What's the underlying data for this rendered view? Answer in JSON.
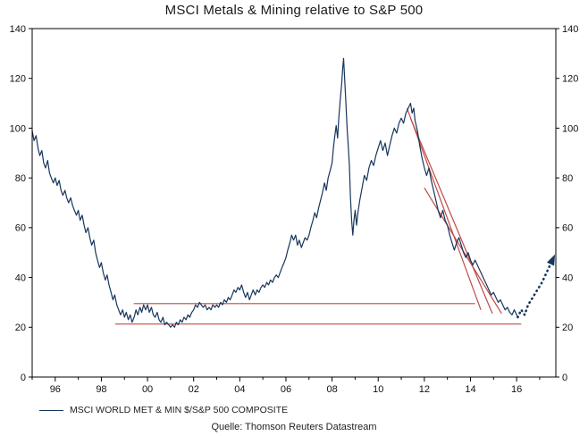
{
  "title": "MSCI Metals & Mining relative to S&P 500",
  "legend": {
    "label": "MSCI WORLD MET & MIN $/S&P 500 COMPOSITE"
  },
  "source": "Quelle: Thomson Reuters Datastream",
  "colors": {
    "series": "#17365d",
    "forecast": "#17365d",
    "annotation": "#bf4a47",
    "axis": "#000000",
    "background": "#ffffff"
  },
  "chart_data": {
    "type": "line",
    "title": "MSCI Metals & Mining relative to S&P 500",
    "xlabel": "",
    "ylabel": "",
    "grid": false,
    "legend_position": "bottom-left",
    "xlim": [
      1995,
      2017.7
    ],
    "ylim": [
      0,
      140
    ],
    "yticks": [
      0,
      20,
      40,
      60,
      80,
      100,
      120,
      140
    ],
    "xticks": [
      {
        "x": 1996,
        "label": "96"
      },
      {
        "x": 1998,
        "label": "98"
      },
      {
        "x": 2000,
        "label": "00"
      },
      {
        "x": 2002,
        "label": "02"
      },
      {
        "x": 2004,
        "label": "04"
      },
      {
        "x": 2006,
        "label": "06"
      },
      {
        "x": 2008,
        "label": "08"
      },
      {
        "x": 2010,
        "label": "10"
      },
      {
        "x": 2012,
        "label": "12"
      },
      {
        "x": 2014,
        "label": "14"
      },
      {
        "x": 2016,
        "label": "16"
      }
    ],
    "series": [
      {
        "name": "MSCI WORLD MET & MIN $/S&P 500 COMPOSITE",
        "points": [
          [
            1995.0,
            99
          ],
          [
            1995.08,
            95
          ],
          [
            1995.17,
            97
          ],
          [
            1995.25,
            92
          ],
          [
            1995.33,
            89
          ],
          [
            1995.42,
            91
          ],
          [
            1995.5,
            86
          ],
          [
            1995.58,
            84
          ],
          [
            1995.67,
            87
          ],
          [
            1995.75,
            82
          ],
          [
            1995.83,
            80
          ],
          [
            1995.92,
            78
          ],
          [
            1996.0,
            80
          ],
          [
            1996.08,
            77
          ],
          [
            1996.17,
            79
          ],
          [
            1996.25,
            75
          ],
          [
            1996.33,
            73
          ],
          [
            1996.42,
            75
          ],
          [
            1996.5,
            72
          ],
          [
            1996.58,
            70
          ],
          [
            1996.67,
            72
          ],
          [
            1996.75,
            69
          ],
          [
            1996.83,
            67
          ],
          [
            1996.92,
            65
          ],
          [
            1997.0,
            67
          ],
          [
            1997.08,
            63
          ],
          [
            1997.17,
            65
          ],
          [
            1997.25,
            61
          ],
          [
            1997.33,
            58
          ],
          [
            1997.42,
            60
          ],
          [
            1997.5,
            56
          ],
          [
            1997.58,
            53
          ],
          [
            1997.67,
            55
          ],
          [
            1997.75,
            50
          ],
          [
            1997.83,
            47
          ],
          [
            1997.92,
            44
          ],
          [
            1998.0,
            46
          ],
          [
            1998.08,
            42
          ],
          [
            1998.17,
            39
          ],
          [
            1998.25,
            41
          ],
          [
            1998.33,
            37
          ],
          [
            1998.42,
            34
          ],
          [
            1998.5,
            31
          ],
          [
            1998.58,
            33
          ],
          [
            1998.67,
            29
          ],
          [
            1998.75,
            27
          ],
          [
            1998.83,
            25
          ],
          [
            1998.92,
            27
          ],
          [
            1999.0,
            24
          ],
          [
            1999.08,
            26
          ],
          [
            1999.17,
            23
          ],
          [
            1999.25,
            25
          ],
          [
            1999.33,
            22
          ],
          [
            1999.42,
            24
          ],
          [
            1999.5,
            27
          ],
          [
            1999.58,
            25
          ],
          [
            1999.67,
            28
          ],
          [
            1999.75,
            26
          ],
          [
            1999.83,
            29
          ],
          [
            1999.92,
            27
          ],
          [
            2000.0,
            29
          ],
          [
            2000.08,
            26
          ],
          [
            2000.17,
            28
          ],
          [
            2000.25,
            25
          ],
          [
            2000.33,
            24
          ],
          [
            2000.42,
            26
          ],
          [
            2000.5,
            23
          ],
          [
            2000.58,
            22
          ],
          [
            2000.67,
            24
          ],
          [
            2000.75,
            21
          ],
          [
            2000.83,
            22
          ],
          [
            2000.92,
            21
          ],
          [
            2001.0,
            20
          ],
          [
            2001.08,
            21
          ],
          [
            2001.17,
            20
          ],
          [
            2001.25,
            22
          ],
          [
            2001.33,
            21
          ],
          [
            2001.42,
            23
          ],
          [
            2001.5,
            22
          ],
          [
            2001.58,
            24
          ],
          [
            2001.67,
            23
          ],
          [
            2001.75,
            25
          ],
          [
            2001.83,
            24
          ],
          [
            2001.92,
            26
          ],
          [
            2002.0,
            27
          ],
          [
            2002.08,
            29
          ],
          [
            2002.17,
            28
          ],
          [
            2002.25,
            30
          ],
          [
            2002.33,
            29
          ],
          [
            2002.42,
            28
          ],
          [
            2002.5,
            29
          ],
          [
            2002.58,
            27
          ],
          [
            2002.67,
            28
          ],
          [
            2002.75,
            27
          ],
          [
            2002.83,
            29
          ],
          [
            2002.92,
            28
          ],
          [
            2003.0,
            29
          ],
          [
            2003.08,
            28
          ],
          [
            2003.17,
            30
          ],
          [
            2003.25,
            29
          ],
          [
            2003.33,
            31
          ],
          [
            2003.42,
            30
          ],
          [
            2003.5,
            32
          ],
          [
            2003.58,
            31
          ],
          [
            2003.67,
            33
          ],
          [
            2003.75,
            35
          ],
          [
            2003.83,
            34
          ],
          [
            2003.92,
            36
          ],
          [
            2004.0,
            35
          ],
          [
            2004.08,
            37
          ],
          [
            2004.17,
            34
          ],
          [
            2004.25,
            32
          ],
          [
            2004.33,
            34
          ],
          [
            2004.42,
            31
          ],
          [
            2004.5,
            33
          ],
          [
            2004.58,
            35
          ],
          [
            2004.67,
            33
          ],
          [
            2004.75,
            35
          ],
          [
            2004.83,
            34
          ],
          [
            2004.92,
            36
          ],
          [
            2005.0,
            37
          ],
          [
            2005.08,
            36
          ],
          [
            2005.17,
            38
          ],
          [
            2005.25,
            37
          ],
          [
            2005.33,
            39
          ],
          [
            2005.42,
            38
          ],
          [
            2005.5,
            40
          ],
          [
            2005.58,
            41
          ],
          [
            2005.67,
            40
          ],
          [
            2005.75,
            42
          ],
          [
            2005.83,
            44
          ],
          [
            2005.92,
            46
          ],
          [
            2006.0,
            48
          ],
          [
            2006.08,
            51
          ],
          [
            2006.17,
            54
          ],
          [
            2006.25,
            57
          ],
          [
            2006.33,
            55
          ],
          [
            2006.42,
            57
          ],
          [
            2006.5,
            53
          ],
          [
            2006.58,
            55
          ],
          [
            2006.67,
            52
          ],
          [
            2006.75,
            54
          ],
          [
            2006.83,
            56
          ],
          [
            2006.92,
            55
          ],
          [
            2007.0,
            57
          ],
          [
            2007.08,
            60
          ],
          [
            2007.17,
            63
          ],
          [
            2007.25,
            66
          ],
          [
            2007.33,
            64
          ],
          [
            2007.42,
            68
          ],
          [
            2007.5,
            71
          ],
          [
            2007.58,
            74
          ],
          [
            2007.67,
            78
          ],
          [
            2007.75,
            75
          ],
          [
            2007.83,
            80
          ],
          [
            2007.92,
            83
          ],
          [
            2008.0,
            86
          ],
          [
            2008.06,
            92
          ],
          [
            2008.12,
            97
          ],
          [
            2008.18,
            101
          ],
          [
            2008.24,
            96
          ],
          [
            2008.3,
            105
          ],
          [
            2008.36,
            112
          ],
          [
            2008.42,
            118
          ],
          [
            2008.46,
            124
          ],
          [
            2008.5,
            128
          ],
          [
            2008.55,
            119
          ],
          [
            2008.6,
            110
          ],
          [
            2008.65,
            100
          ],
          [
            2008.7,
            93
          ],
          [
            2008.75,
            85
          ],
          [
            2008.8,
            72
          ],
          [
            2008.85,
            63
          ],
          [
            2008.9,
            57
          ],
          [
            2008.95,
            63
          ],
          [
            2009.0,
            67
          ],
          [
            2009.06,
            61
          ],
          [
            2009.12,
            66
          ],
          [
            2009.2,
            71
          ],
          [
            2009.3,
            76
          ],
          [
            2009.4,
            81
          ],
          [
            2009.5,
            79
          ],
          [
            2009.6,
            84
          ],
          [
            2009.7,
            87
          ],
          [
            2009.8,
            85
          ],
          [
            2009.9,
            89
          ],
          [
            2010.0,
            92
          ],
          [
            2010.1,
            95
          ],
          [
            2010.2,
            91
          ],
          [
            2010.3,
            94
          ],
          [
            2010.4,
            89
          ],
          [
            2010.5,
            93
          ],
          [
            2010.6,
            97
          ],
          [
            2010.7,
            100
          ],
          [
            2010.8,
            98
          ],
          [
            2010.9,
            102
          ],
          [
            2011.0,
            104
          ],
          [
            2011.1,
            102
          ],
          [
            2011.2,
            106
          ],
          [
            2011.3,
            108
          ],
          [
            2011.4,
            110
          ],
          [
            2011.47,
            106
          ],
          [
            2011.54,
            108
          ],
          [
            2011.6,
            103
          ],
          [
            2011.7,
            99
          ],
          [
            2011.8,
            93
          ],
          [
            2011.9,
            88
          ],
          [
            2012.0,
            84
          ],
          [
            2012.1,
            81
          ],
          [
            2012.2,
            84
          ],
          [
            2012.3,
            79
          ],
          [
            2012.4,
            75
          ],
          [
            2012.5,
            71
          ],
          [
            2012.6,
            67
          ],
          [
            2012.7,
            64
          ],
          [
            2012.8,
            67
          ],
          [
            2012.9,
            63
          ],
          [
            2013.0,
            61
          ],
          [
            2013.1,
            57
          ],
          [
            2013.2,
            54
          ],
          [
            2013.3,
            51
          ],
          [
            2013.4,
            54
          ],
          [
            2013.5,
            56
          ],
          [
            2013.6,
            53
          ],
          [
            2013.7,
            50
          ],
          [
            2013.8,
            48
          ],
          [
            2013.9,
            50
          ],
          [
            2014.0,
            47
          ],
          [
            2014.1,
            45
          ],
          [
            2014.2,
            47
          ],
          [
            2014.3,
            45
          ],
          [
            2014.4,
            43
          ],
          [
            2014.5,
            41
          ],
          [
            2014.6,
            39
          ],
          [
            2014.7,
            37
          ],
          [
            2014.8,
            35
          ],
          [
            2014.9,
            33
          ],
          [
            2015.0,
            34
          ],
          [
            2015.1,
            32
          ],
          [
            2015.2,
            30
          ],
          [
            2015.3,
            31
          ],
          [
            2015.4,
            29
          ],
          [
            2015.5,
            27
          ],
          [
            2015.6,
            28
          ],
          [
            2015.7,
            26
          ],
          [
            2015.8,
            25
          ],
          [
            2015.9,
            27
          ],
          [
            2016.0,
            25
          ],
          [
            2016.05,
            24
          ]
        ]
      }
    ],
    "forecast": {
      "name": "projected rebound (dotted arrow)",
      "style": "dotted-arrow",
      "points": [
        [
          2016.05,
          24
        ],
        [
          2016.2,
          27
        ],
        [
          2016.35,
          25
        ],
        [
          2016.5,
          29
        ],
        [
          2016.7,
          32
        ],
        [
          2016.9,
          35
        ],
        [
          2017.1,
          38
        ],
        [
          2017.25,
          41
        ],
        [
          2017.4,
          44
        ],
        [
          2017.55,
          47
        ]
      ]
    },
    "annotations": {
      "horizontal_lines": [
        {
          "y": 29.5,
          "x1": 1999.4,
          "x2": 2014.2
        },
        {
          "y": 21.3,
          "x1": 1998.6,
          "x2": 2016.2
        }
      ],
      "trendlines": [
        {
          "x1": 2011.25,
          "y1": 108,
          "x2": 2014.45,
          "y2": 27
        },
        {
          "x1": 2011.4,
          "y1": 104,
          "x2": 2014.95,
          "y2": 25.5
        },
        {
          "x1": 2012.0,
          "y1": 76,
          "x2": 2015.35,
          "y2": 25.5
        }
      ]
    }
  }
}
